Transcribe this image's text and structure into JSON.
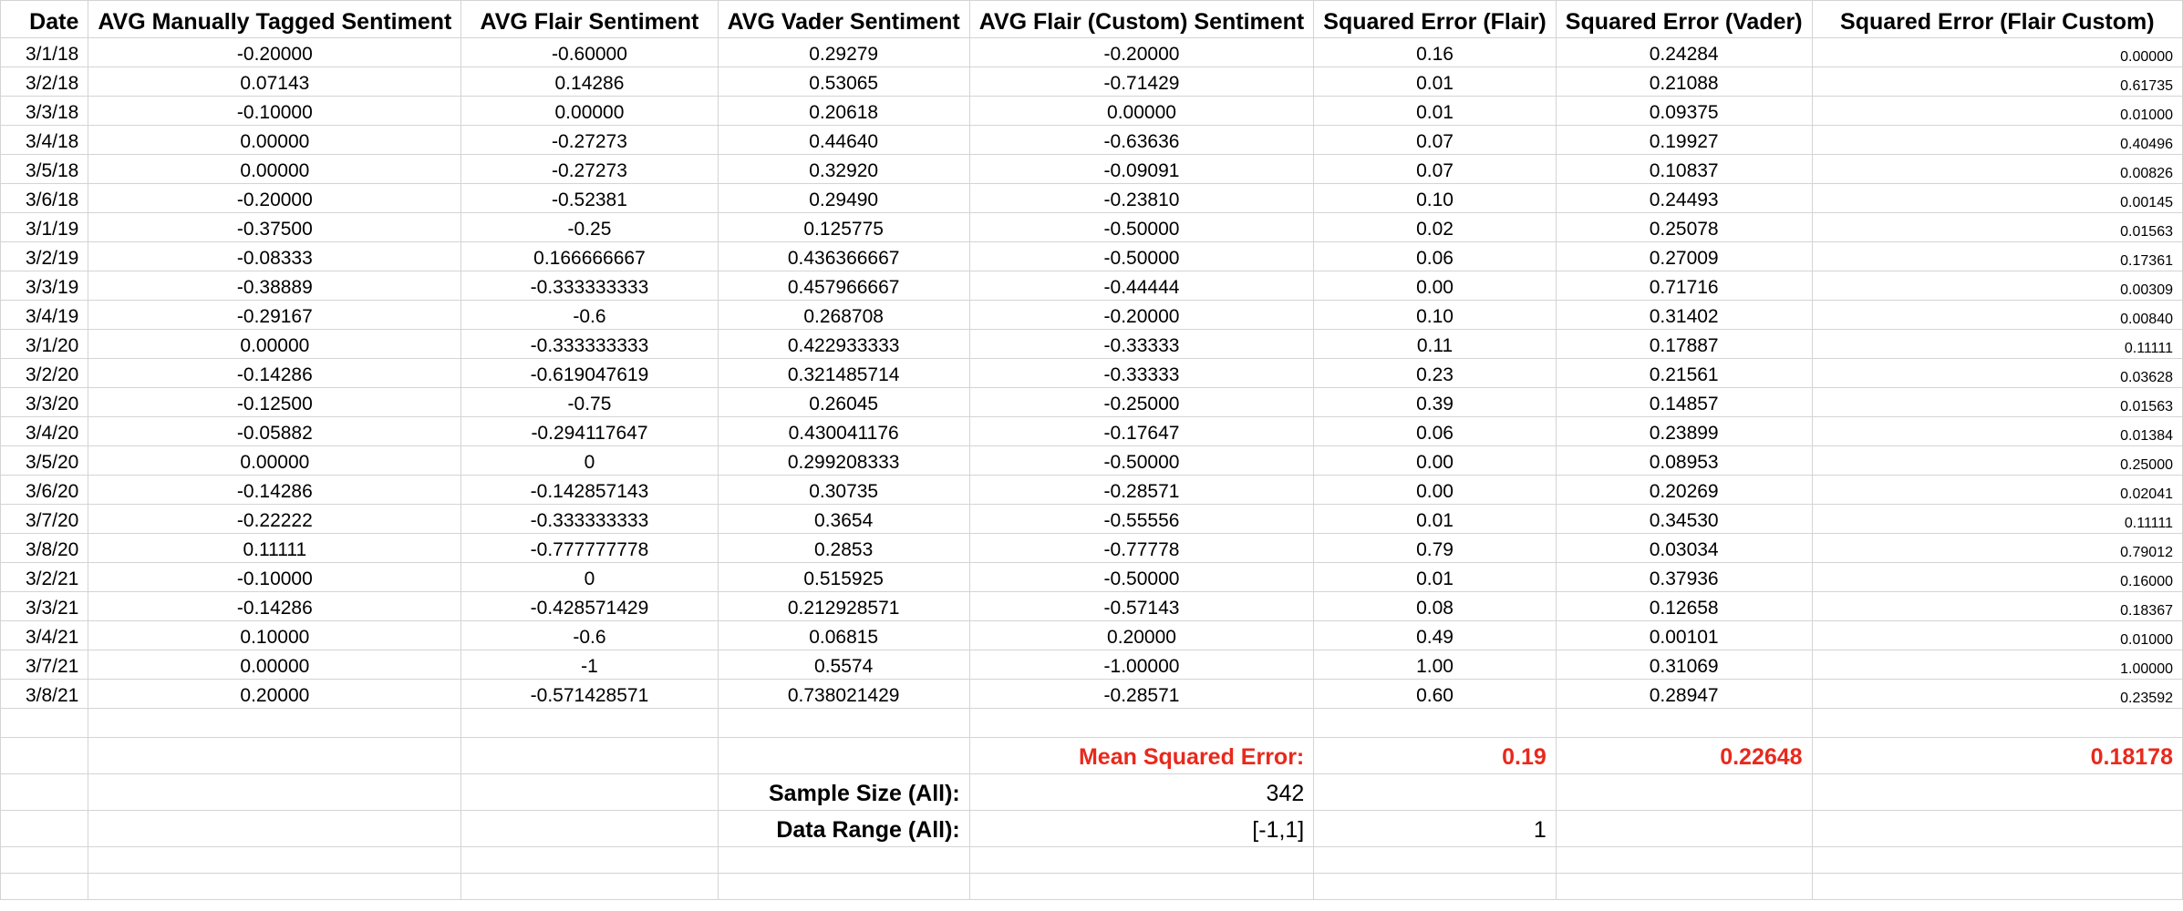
{
  "headers": [
    "Date",
    "AVG Manually Tagged Sentiment",
    "AVG Flair Sentiment",
    "AVG Vader Sentiment",
    "AVG  Flair (Custom) Sentiment",
    "Squared Error (Flair)",
    "Squared Error (Vader)",
    "Squared Error (Flair Custom)"
  ],
  "rows": [
    [
      "3/1/18",
      "-0.20000",
      "-0.60000",
      "0.29279",
      "-0.20000",
      "0.16",
      "0.24284",
      "0.00000"
    ],
    [
      "3/2/18",
      "0.07143",
      "0.14286",
      "0.53065",
      "-0.71429",
      "0.01",
      "0.21088",
      "0.61735"
    ],
    [
      "3/3/18",
      "-0.10000",
      "0.00000",
      "0.20618",
      "0.00000",
      "0.01",
      "0.09375",
      "0.01000"
    ],
    [
      "3/4/18",
      "0.00000",
      "-0.27273",
      "0.44640",
      "-0.63636",
      "0.07",
      "0.19927",
      "0.40496"
    ],
    [
      "3/5/18",
      "0.00000",
      "-0.27273",
      "0.32920",
      "-0.09091",
      "0.07",
      "0.10837",
      "0.00826"
    ],
    [
      "3/6/18",
      "-0.20000",
      "-0.52381",
      "0.29490",
      "-0.23810",
      "0.10",
      "0.24493",
      "0.00145"
    ],
    [
      "3/1/19",
      "-0.37500",
      "-0.25",
      "0.125775",
      "-0.50000",
      "0.02",
      "0.25078",
      "0.01563"
    ],
    [
      "3/2/19",
      "-0.08333",
      "0.166666667",
      "0.436366667",
      "-0.50000",
      "0.06",
      "0.27009",
      "0.17361"
    ],
    [
      "3/3/19",
      "-0.38889",
      "-0.333333333",
      "0.457966667",
      "-0.44444",
      "0.00",
      "0.71716",
      "0.00309"
    ],
    [
      "3/4/19",
      "-0.29167",
      "-0.6",
      "0.268708",
      "-0.20000",
      "0.10",
      "0.31402",
      "0.00840"
    ],
    [
      "3/1/20",
      "0.00000",
      "-0.333333333",
      "0.422933333",
      "-0.33333",
      "0.11",
      "0.17887",
      "0.11111"
    ],
    [
      "3/2/20",
      "-0.14286",
      "-0.619047619",
      "0.321485714",
      "-0.33333",
      "0.23",
      "0.21561",
      "0.03628"
    ],
    [
      "3/3/20",
      "-0.12500",
      "-0.75",
      "0.26045",
      "-0.25000",
      "0.39",
      "0.14857",
      "0.01563"
    ],
    [
      "3/4/20",
      "-0.05882",
      "-0.294117647",
      "0.430041176",
      "-0.17647",
      "0.06",
      "0.23899",
      "0.01384"
    ],
    [
      "3/5/20",
      "0.00000",
      "0",
      "0.299208333",
      "-0.50000",
      "0.00",
      "0.08953",
      "0.25000"
    ],
    [
      "3/6/20",
      "-0.14286",
      "-0.142857143",
      "0.30735",
      "-0.28571",
      "0.00",
      "0.20269",
      "0.02041"
    ],
    [
      "3/7/20",
      "-0.22222",
      "-0.333333333",
      "0.3654",
      "-0.55556",
      "0.01",
      "0.34530",
      "0.11111"
    ],
    [
      "3/8/20",
      "0.11111",
      "-0.777777778",
      "0.2853",
      "-0.77778",
      "0.79",
      "0.03034",
      "0.79012"
    ],
    [
      "3/2/21",
      "-0.10000",
      "0",
      "0.515925",
      "-0.50000",
      "0.01",
      "0.37936",
      "0.16000"
    ],
    [
      "3/3/21",
      "-0.14286",
      "-0.428571429",
      "0.212928571",
      "-0.57143",
      "0.08",
      "0.12658",
      "0.18367"
    ],
    [
      "3/4/21",
      "0.10000",
      "-0.6",
      "0.06815",
      "0.20000",
      "0.49",
      "0.00101",
      "0.01000"
    ],
    [
      "3/7/21",
      "0.00000",
      "-1",
      "0.5574",
      "-1.00000",
      "1.00",
      "0.31069",
      "1.00000"
    ],
    [
      "3/8/21",
      "0.20000",
      "-0.571428571",
      "0.738021429",
      "-0.28571",
      "0.60",
      "0.28947",
      "0.23592"
    ]
  ],
  "summary": {
    "mse_label": "Mean Squared Error:",
    "mse_flair": "0.19",
    "mse_vader": "0.22648",
    "mse_flair_custom": "0.18178",
    "sample_size_label": "Sample Size (All):",
    "sample_size_value": "342",
    "data_range_label": "Data Range (All):",
    "data_range_value": "[-1,1]",
    "data_range_extra": "1"
  },
  "colors": {
    "summary_red": "#e8291c",
    "gridline": "#d4d4d4"
  }
}
